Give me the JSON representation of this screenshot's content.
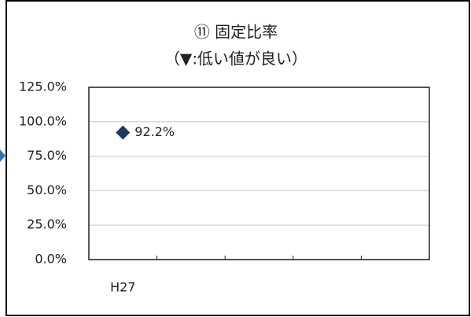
{
  "chart_data": {
    "type": "line",
    "title": "⑪ 固定比率",
    "subtitle": "（▼:低い値が良い）",
    "categories": [
      "H27",
      null,
      null,
      null,
      null
    ],
    "series": [
      {
        "name": null,
        "color": "#1f3864",
        "marker": "diamond",
        "values": [
          92.2,
          null,
          null,
          null,
          null
        ],
        "value_labels": [
          "92.2%",
          null,
          null,
          null,
          null
        ]
      }
    ],
    "ylim": [
      0,
      125
    ],
    "yticks": [
      {
        "value": 0,
        "label": "0.0%"
      },
      {
        "value": 25,
        "label": "25.0%"
      },
      {
        "value": 50,
        "label": "50.0%"
      },
      {
        "value": 75,
        "label": "75.0%"
      },
      {
        "value": 100,
        "label": "100.0%"
      },
      {
        "value": 125,
        "label": "125.0%"
      }
    ],
    "grid": true
  }
}
